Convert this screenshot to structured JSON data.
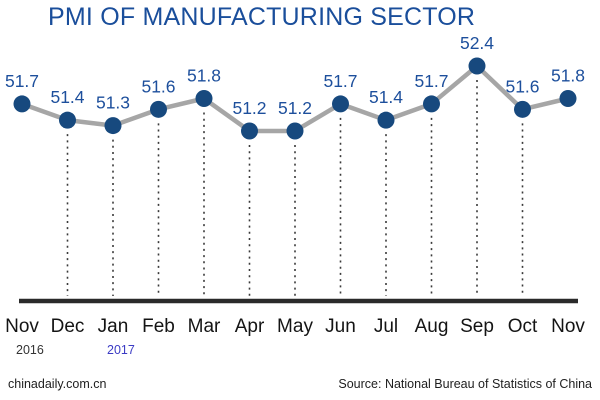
{
  "chart_data": {
    "type": "line",
    "title": "PMI OF MANUFACTURING SECTOR",
    "categories": [
      "Nov",
      "Dec",
      "Jan",
      "Feb",
      "Mar",
      "Apr",
      "May",
      "Jun",
      "Jul",
      "Aug",
      "Sep",
      "Oct",
      "Nov"
    ],
    "values": [
      51.7,
      51.4,
      51.3,
      51.6,
      51.8,
      51.2,
      51.2,
      51.7,
      51.4,
      51.7,
      52.4,
      51.6,
      51.8
    ],
    "year_markers": [
      {
        "label": "2016",
        "category_index": 0,
        "color": "#333333"
      },
      {
        "label": "2017",
        "category_index": 2,
        "color": "#3b3bc4"
      }
    ],
    "xlabel": "",
    "ylabel": "",
    "ylim": [
      51.0,
      52.6
    ],
    "legend": "none",
    "grid": "vertical dotted drop-lines under interior points",
    "data_labels": true,
    "colors": {
      "title_text": "#1a4e9b",
      "value_label_text": "#1d4f9c",
      "marker_fill": "#17497e",
      "line_stroke": "#a6a6a6",
      "drop_line": "#3a3a3a",
      "axis_line": "#2a2a2a",
      "month_label_text": "#141414"
    }
  },
  "footer": {
    "watermark": "chinadaily.com.cn",
    "source": "Source: National Bureau of Statistics of China"
  }
}
